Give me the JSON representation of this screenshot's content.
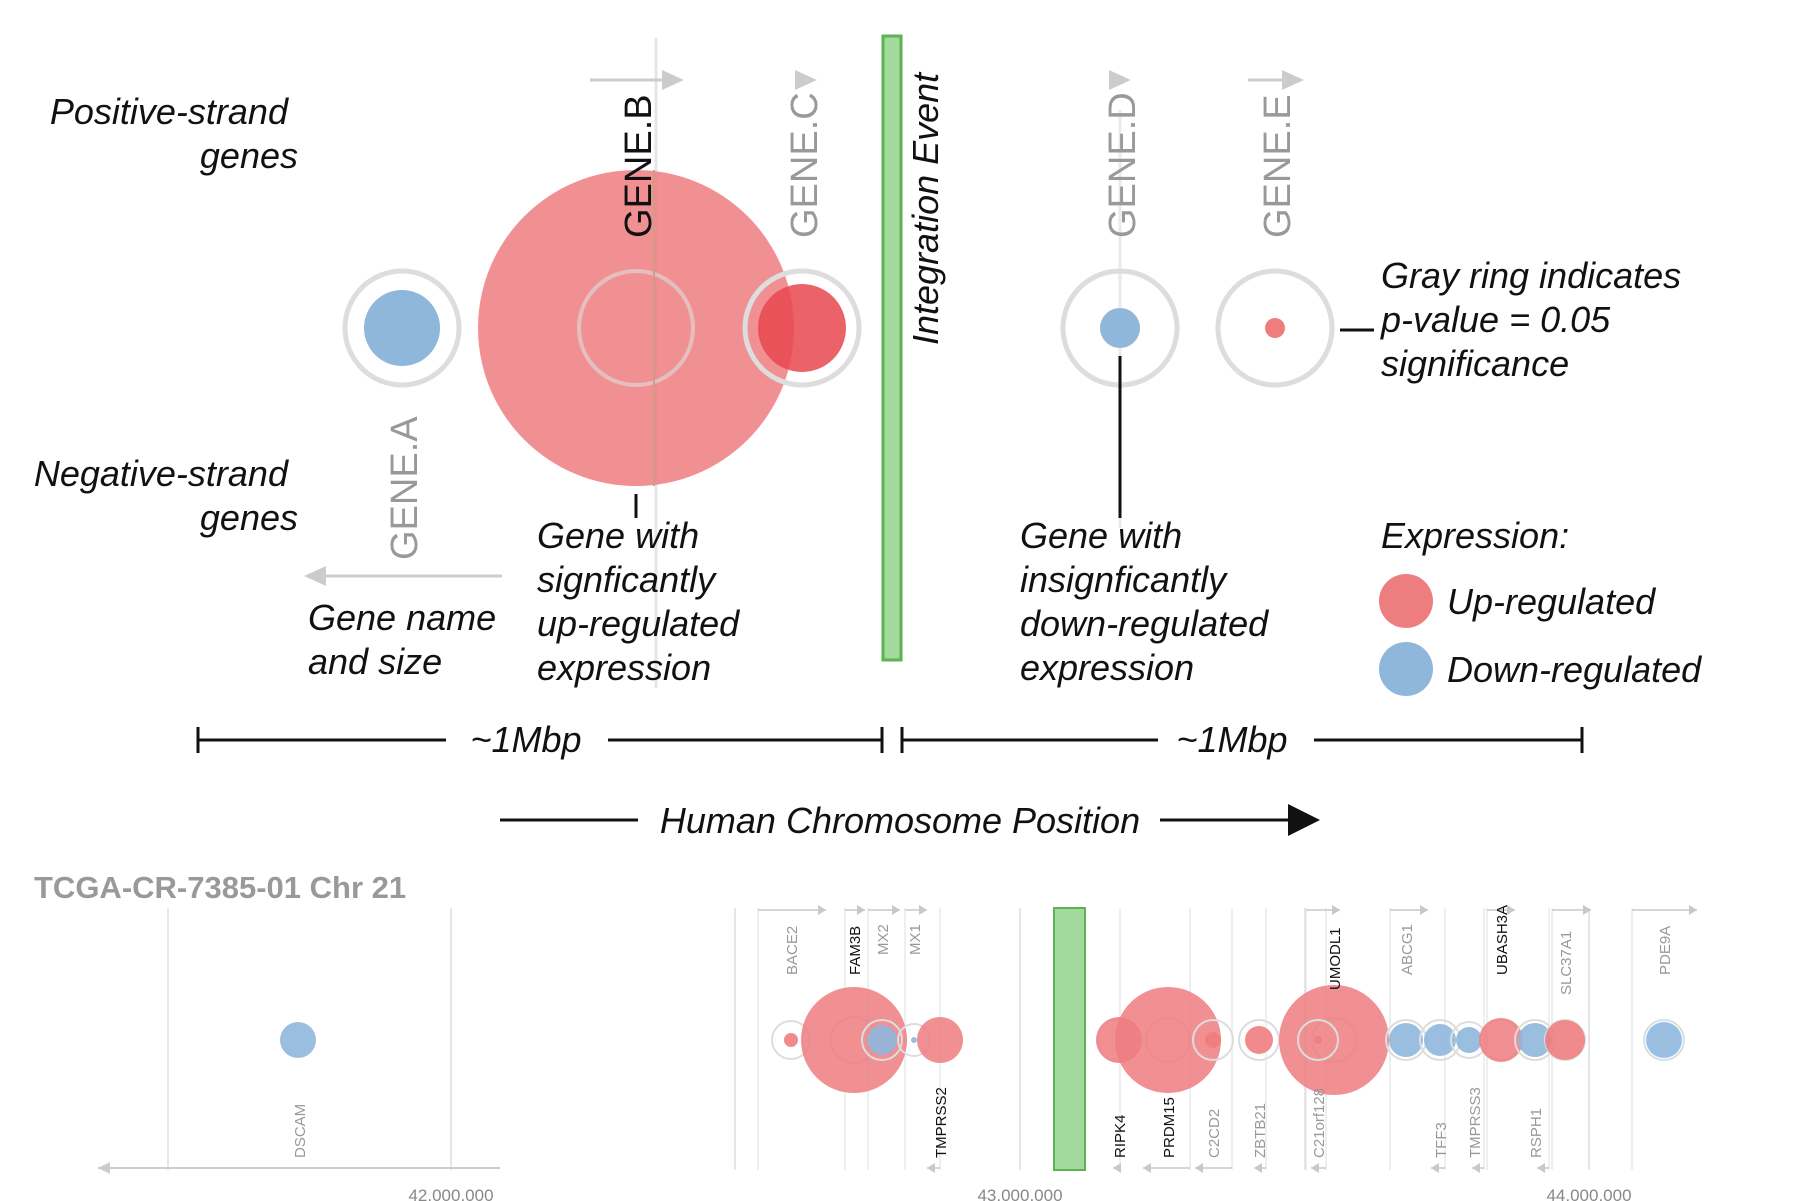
{
  "colors": {
    "up": "#ee7d80",
    "down": "#8fb7db",
    "integration": "#a3d99c",
    "integration_border": "#5bb352",
    "ring": "#dddddd",
    "arrow": "#c8c8c8",
    "muted_text": "#999999"
  },
  "legend_diagram": {
    "positive_strand": [
      "Positive-strand",
      "genes"
    ],
    "negative_strand": [
      "Negative-strand",
      "genes"
    ],
    "integration_event": "Integration Event",
    "genes": [
      {
        "name": "GENE.A",
        "strand": "negative",
        "expression": "down",
        "significant": false
      },
      {
        "name": "GENE.B",
        "strand": "positive",
        "expression": "up",
        "significant": true
      },
      {
        "name": "GENE.C",
        "strand": "positive",
        "expression": "up",
        "significant": false
      },
      {
        "name": "GENE.D",
        "strand": "positive",
        "expression": "down",
        "significant": false
      },
      {
        "name": "GENE.E",
        "strand": "positive",
        "expression": "up",
        "significant": false
      }
    ],
    "annotations": {
      "gene_name_size": [
        "Gene name",
        "and size"
      ],
      "sig_up": [
        "Gene with",
        "signficantly",
        "up-regulated",
        "expression"
      ],
      "insig_down": [
        "Gene with",
        "insignficantly",
        "down-regulated",
        "expression"
      ],
      "gray_ring": [
        "Gray ring indicates",
        "p-value = 0.05",
        "significance"
      ]
    },
    "expression_legend": {
      "title": "Expression:",
      "up": "Up-regulated",
      "down": "Down-regulated"
    },
    "scale_left": "~1Mbp",
    "scale_right": "~1Mbp",
    "axis_caption": "Human Chromosome Position"
  },
  "sample_track": {
    "title": "TCGA-CR-7385-01 Chr 21",
    "ticks": [
      "42,000,000",
      "43,000,000",
      "44,000,000"
    ],
    "genes": [
      {
        "name": "DSCAM",
        "strand": "negative",
        "expression": "down",
        "significant": false
      },
      {
        "name": "BACE2",
        "strand": "positive",
        "expression": "up",
        "significant": false
      },
      {
        "name": "FAM3B",
        "strand": "positive",
        "expression": "up",
        "significant": true
      },
      {
        "name": "MX2",
        "strand": "positive",
        "expression": "down",
        "significant": false
      },
      {
        "name": "MX1",
        "strand": "positive",
        "expression": "down",
        "significant": false
      },
      {
        "name": "TMPRSS2",
        "strand": "negative",
        "expression": "up",
        "significant": true
      },
      {
        "name": "RIPK4",
        "strand": "negative",
        "expression": "up",
        "significant": true
      },
      {
        "name": "PRDM15",
        "strand": "negative",
        "expression": "up",
        "significant": true
      },
      {
        "name": "C2CD2",
        "strand": "negative",
        "expression": "up",
        "significant": false
      },
      {
        "name": "ZBTB21",
        "strand": "negative",
        "expression": "up",
        "significant": false
      },
      {
        "name": "UMODL1",
        "strand": "positive",
        "expression": "up",
        "significant": true
      },
      {
        "name": "C21orf128",
        "strand": "negative",
        "expression": "up",
        "significant": false
      },
      {
        "name": "ABCG1",
        "strand": "positive",
        "expression": "down",
        "significant": false
      },
      {
        "name": "TFF3",
        "strand": "negative",
        "expression": "down",
        "significant": false
      },
      {
        "name": "TMPRSS3",
        "strand": "negative",
        "expression": "down",
        "significant": false
      },
      {
        "name": "UBASH3A",
        "strand": "positive",
        "expression": "up",
        "significant": true
      },
      {
        "name": "RSPH1",
        "strand": "negative",
        "expression": "down",
        "significant": false
      },
      {
        "name": "SLC37A1",
        "strand": "positive",
        "expression": "up",
        "significant": false
      },
      {
        "name": "PDE9A",
        "strand": "positive",
        "expression": "down",
        "significant": false
      }
    ]
  }
}
